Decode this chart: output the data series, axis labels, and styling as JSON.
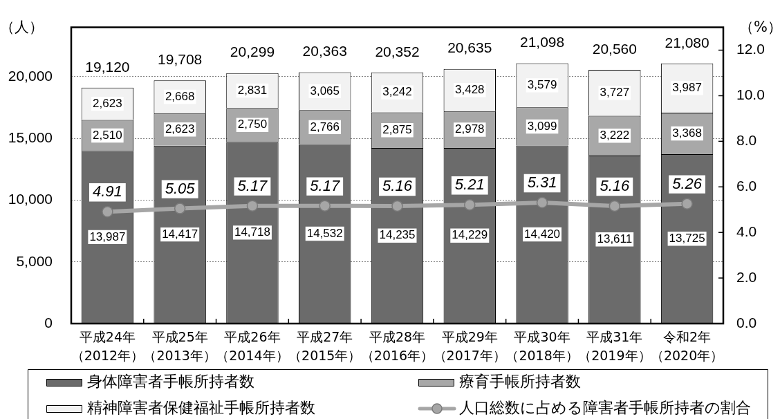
{
  "chart_data": {
    "type": "bar",
    "categories": [
      "平成24年（2012年）",
      "平成25年（2013年）",
      "平成26年（2014年）",
      "平成27年（2015年）",
      "平成28年（2016年）",
      "平成29年（2017年）",
      "平成30年（2018年）",
      "平成31年（2019年）",
      "令和2年（2020年）"
    ],
    "series": [
      {
        "name": "身体障害者手帳所持者数",
        "color": "#6b6b6b",
        "values": [
          13987,
          14417,
          14718,
          14532,
          14235,
          14229,
          14420,
          13611,
          13725
        ],
        "value_labels": [
          "13,987",
          "14,417",
          "14,718",
          "14,532",
          "14,235",
          "14,229",
          "14,420",
          "13,611",
          "13,725"
        ]
      },
      {
        "name": "療育手帳所持者数",
        "color": "#a8a8a8",
        "values": [
          2510,
          2623,
          2750,
          2766,
          2875,
          2978,
          3099,
          3222,
          3368
        ],
        "value_labels": [
          "2,510",
          "2,623",
          "2,750",
          "2,766",
          "2,875",
          "2,978",
          "3,099",
          "3,222",
          "3,368"
        ]
      },
      {
        "name": "精神障害者保健福祉手帳所持者数",
        "color": "#f2f2f2",
        "values": [
          2623,
          2668,
          2831,
          3065,
          3242,
          3428,
          3579,
          3727,
          3987
        ],
        "value_labels": [
          "2,623",
          "2,668",
          "2,831",
          "3,065",
          "3,242",
          "3,428",
          "3,579",
          "3,727",
          "3,987"
        ]
      },
      {
        "name": "人口総数に占める障害者手帳所持者の割合",
        "type": "line",
        "axis": "y2",
        "color": "#a6a6a6",
        "values": [
          4.91,
          5.05,
          5.17,
          5.17,
          5.16,
          5.21,
          5.31,
          5.16,
          5.26
        ],
        "value_labels": [
          "4.91",
          "5.05",
          "5.17",
          "5.17",
          "5.16",
          "5.21",
          "5.31",
          "5.16",
          "5.26"
        ]
      }
    ],
    "stacked": true,
    "ylabel": "（人）",
    "y2label": "（%）",
    "ylim": [
      0,
      24000
    ],
    "yticks": [
      0,
      {
        "value": 5000,
        "label": "5,000"
      },
      {
        "value": 10000,
        "label": "10,000"
      },
      {
        "value": 15000,
        "label": "15,000"
      },
      {
        "value": 20000,
        "label": "20,000"
      }
    ],
    "y2lim": [
      0,
      13
    ],
    "y2ticks": [
      {
        "value": 0,
        "label": "0.0"
      },
      {
        "value": 2,
        "label": "2.0"
      },
      {
        "value": 4,
        "label": "4.0"
      },
      {
        "value": 6,
        "label": "6.0"
      },
      {
        "value": 8,
        "label": "8.0"
      },
      {
        "value": 10,
        "label": "10.0"
      },
      {
        "value": 12,
        "label": "12.0"
      }
    ],
    "grid": "y",
    "legend": "bottom",
    "marker": "circle",
    "totals": [
      "19,120",
      "19,708",
      "20,299",
      "20,363",
      "20,352",
      "20,635",
      "21,098",
      "20,560",
      "21,080"
    ]
  }
}
